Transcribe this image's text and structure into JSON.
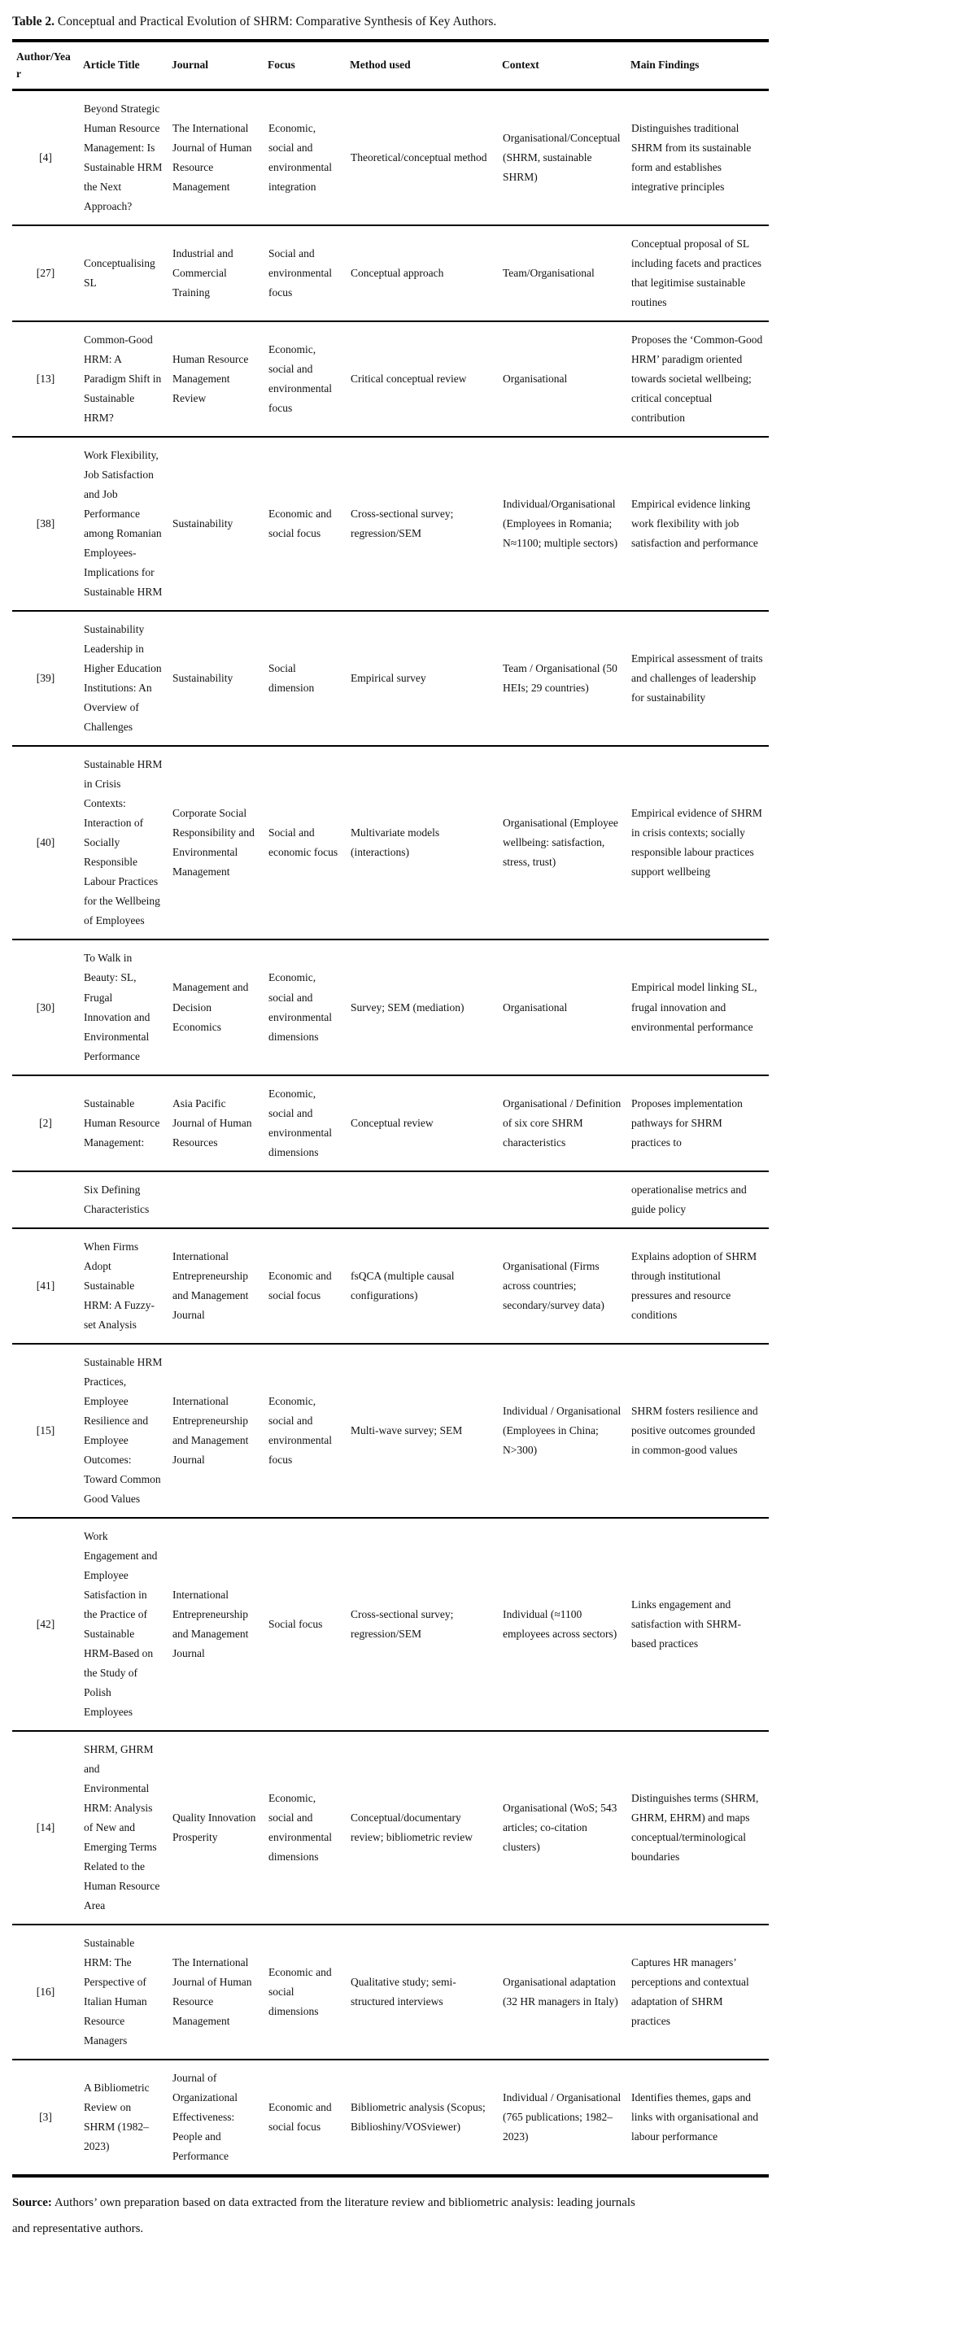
{
  "table": {
    "title_label": "Table 2.",
    "title_text": " Conceptual and Practical Evolution of SHRM: Comparative Synthesis of Key Authors.",
    "columns": [
      "Author/Year",
      "Article Title",
      "Journal",
      "Focus",
      "Method used",
      "Context",
      "Main Findings"
    ],
    "column_keys": [
      "author-year",
      "article-title",
      "journal",
      "focus",
      "method-used",
      "context",
      "main-findings"
    ],
    "rows": [
      [
        "[4]",
        "Beyond Strategic Human Resource Management: Is Sustainable HRM the Next Approach?",
        "The International Journal of Human Resource Management",
        "Economic, social and environmental integration",
        "Theoretical/conceptual method",
        "Organisational/Conceptual (SHRM, sustainable SHRM)",
        "Distinguishes traditional SHRM from its sustainable form and establishes integrative principles"
      ],
      [
        "[27]",
        "Conceptualising SL",
        "Industrial and Commercial Training",
        "Social and environmental focus",
        "Conceptual approach",
        "Team/Organisational",
        "Conceptual proposal of SL including facets and practices that legitimise sustainable routines"
      ],
      [
        "[13]",
        "Common-Good HRM: A Paradigm Shift in Sustainable HRM?",
        "Human Resource Management Review",
        "Economic, social and environmental focus",
        "Critical conceptual review",
        "Organisational",
        "Proposes the ‘Common-Good HRM’ paradigm oriented towards societal wellbeing; critical conceptual contribution"
      ],
      [
        "[38]",
        "Work Flexibility, Job Satisfaction and Job Performance among Romanian Employees-Implications for Sustainable HRM",
        "Sustainability",
        "Economic and social focus",
        "Cross-sectional survey; regression/SEM",
        "Individual/Organisational (Employees in Romania; N≈1100; multiple sectors)",
        "Empirical evidence linking work flexibility with job satisfaction and performance"
      ],
      [
        "[39]",
        "Sustainability Leadership in Higher Education Institutions: An Overview of Challenges",
        "Sustainability",
        "Social dimension",
        "Empirical survey",
        "Team / Organisational (50 HEIs; 29 countries)",
        "Empirical assessment of traits and challenges of leadership for sustainability"
      ],
      [
        "[40]",
        "Sustainable HRM in Crisis Contexts: Interaction of Socially Responsible Labour Practices for the Wellbeing of Employees",
        "Corporate Social Responsibility and Environmental Management",
        "Social and economic focus",
        "Multivariate models (interactions)",
        "Organisational (Employee wellbeing: satisfaction, stress, trust)",
        "Empirical evidence of SHRM in crisis contexts; socially responsible labour practices support wellbeing"
      ],
      [
        "[30]",
        "To Walk in Beauty: SL, Frugal Innovation and Environmental Performance",
        "Management and Decision Economics",
        "Economic, social and environmental dimensions",
        "Survey; SEM (mediation)",
        "Organisational",
        "Empirical model linking SL, frugal innovation and environmental performance"
      ],
      [
        "[2]",
        "Sustainable Human Resource Management:",
        "Asia Pacific Journal of Human Resources",
        "Economic, social and environmental dimensions",
        "Conceptual review",
        "Organisational / Definition of six core SHRM characteristics",
        "Proposes implementation pathways for SHRM practices to"
      ],
      [
        "",
        "Six Defining Characteristics",
        "",
        "",
        "",
        "",
        "operationalise metrics and guide policy"
      ],
      [
        "[41]",
        "When Firms Adopt Sustainable HRM: A Fuzzy-set Analysis",
        "International Entrepreneurship and Management Journal",
        "Economic and social focus",
        "fsQCA (multiple causal configurations)",
        "Organisational (Firms across countries; secondary/survey data)",
        "Explains adoption of SHRM through institutional pressures and resource conditions"
      ],
      [
        "[15]",
        "Sustainable HRM Practices, Employee Resilience and Employee Outcomes: Toward Common Good Values",
        "International Entrepreneurship and Management Journal",
        "Economic, social and environmental focus",
        "Multi-wave survey; SEM",
        "Individual / Organisational (Employees in China; N>300)",
        "SHRM fosters resilience and positive outcomes grounded in common-good values"
      ],
      [
        "[42]",
        "Work Engagement and Employee Satisfaction in the Practice of Sustainable HRM-Based on the Study of Polish Employees",
        "International Entrepreneurship and Management Journal",
        "Social focus",
        "Cross-sectional survey; regression/SEM",
        "Individual (≈1100 employees across sectors)",
        "Links engagement and satisfaction with SHRM-based practices"
      ],
      [
        "[14]",
        "SHRM, GHRM and Environmental HRM: Analysis of New and Emerging Terms Related to the Human Resource Area",
        "Quality Innovation Prosperity",
        "Economic, social and environmental dimensions",
        "Conceptual/documentary review; bibliometric review",
        "Organisational (WoS; 543 articles; co-citation clusters)",
        "Distinguishes terms (SHRM, GHRM, EHRM) and maps conceptual/terminological boundaries"
      ],
      [
        "[16]",
        "Sustainable HRM: The Perspective of Italian Human Resource Managers",
        "The International Journal of Human Resource Management",
        "Economic and social dimensions",
        "Qualitative study; semi-structured interviews",
        "Organisational adaptation (32 HR managers in Italy)",
        "Captures HR managers’ perceptions and contextual adaptation of SHRM practices"
      ],
      [
        "[3]",
        "A Bibliometric Review on SHRM (1982–2023)",
        "Journal of Organizational Effectiveness: People and Performance",
        "Economic and social focus",
        "Bibliometric analysis (Scopus; Biblioshiny/VOSviewer)",
        "Individual / Organisational (765 publications; 1982–2023)",
        "Identifies themes, gaps and links with organisational and labour performance"
      ]
    ],
    "source_label": "Source:",
    "source_text": " Authors’ own preparation based on data extracted from the literature review and bibliometric analysis: leading journals and representative authors."
  }
}
